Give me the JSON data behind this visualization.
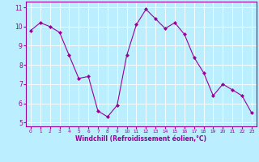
{
  "x": [
    0,
    1,
    2,
    3,
    4,
    5,
    6,
    7,
    8,
    9,
    10,
    11,
    12,
    13,
    14,
    15,
    16,
    17,
    18,
    19,
    20,
    21,
    22,
    23
  ],
  "y": [
    9.8,
    10.2,
    10.0,
    9.7,
    8.5,
    7.3,
    7.4,
    5.6,
    5.3,
    5.9,
    8.5,
    10.1,
    10.9,
    10.4,
    9.9,
    10.2,
    9.6,
    8.4,
    7.6,
    6.4,
    7.0,
    6.7,
    6.4,
    5.5
  ],
  "line_color": "#990099",
  "marker": "D",
  "marker_size": 2.0,
  "bg_color": "#bbeeff",
  "grid_color": "#ffffff",
  "xlabel": "Windchill (Refroidissement éolien,°C)",
  "xlabel_color": "#990099",
  "tick_color": "#990099",
  "ylim": [
    4.8,
    11.3
  ],
  "xlim": [
    -0.5,
    23.5
  ],
  "yticks": [
    5,
    6,
    7,
    8,
    9,
    10,
    11
  ],
  "xticks": [
    0,
    1,
    2,
    3,
    4,
    5,
    6,
    7,
    8,
    9,
    10,
    11,
    12,
    13,
    14,
    15,
    16,
    17,
    18,
    19,
    20,
    21,
    22,
    23
  ],
  "tick_fontsize": 5.5,
  "xlabel_fontsize": 5.5,
  "linewidth": 0.8,
  "spine_color": "#990099"
}
